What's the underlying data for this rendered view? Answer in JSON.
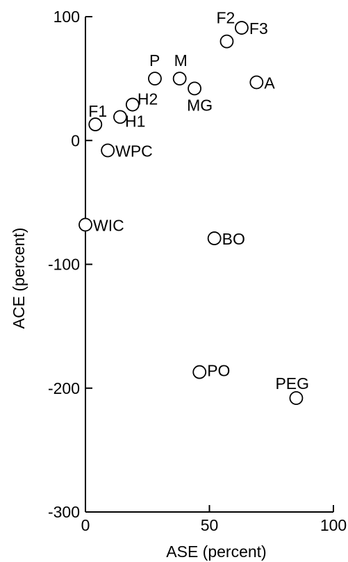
{
  "chart_data": {
    "type": "scatter",
    "title": "",
    "xlabel": "ASE (percent)",
    "ylabel": "ACE (percent)",
    "xlim": [
      0,
      100
    ],
    "ylim": [
      -300,
      100
    ],
    "xticks": [
      0,
      50,
      100
    ],
    "yticks": [
      100,
      0,
      -100,
      -200,
      -300
    ],
    "grid": false,
    "points": [
      {
        "label": "F3",
        "x": 63,
        "y": 91
      },
      {
        "label": "F2",
        "x": 57,
        "y": 80
      },
      {
        "label": "A",
        "x": 69,
        "y": 47
      },
      {
        "label": "P",
        "x": 28,
        "y": 50
      },
      {
        "label": "M",
        "x": 38,
        "y": 50
      },
      {
        "label": "MG",
        "x": 44,
        "y": 42
      },
      {
        "label": "H2",
        "x": 19,
        "y": 29
      },
      {
        "label": "H1",
        "x": 14,
        "y": 19
      },
      {
        "label": "F1",
        "x": 4,
        "y": 13
      },
      {
        "label": "WPC",
        "x": 9,
        "y": -8
      },
      {
        "label": "WIC",
        "x": 0,
        "y": -68
      },
      {
        "label": "BO",
        "x": 52,
        "y": -79
      },
      {
        "label": "PO",
        "x": 46,
        "y": -187
      },
      {
        "label": "PEG",
        "x": 85,
        "y": -208
      }
    ]
  }
}
